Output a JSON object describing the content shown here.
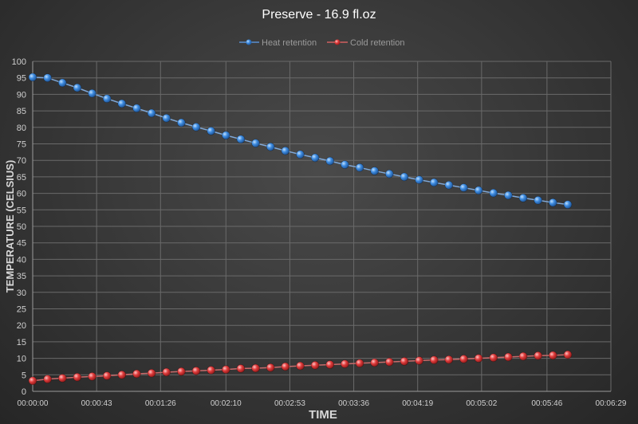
{
  "chart_data": {
    "type": "line",
    "title": "Preserve - 16.9 fl.oz",
    "xlabel": "TIME",
    "ylabel": "TEMPERATURE (CELSIUS)",
    "ylim": [
      0,
      100
    ],
    "yticks": [
      0,
      5,
      10,
      15,
      20,
      25,
      30,
      35,
      40,
      45,
      50,
      55,
      60,
      65,
      70,
      75,
      80,
      85,
      90,
      95,
      100
    ],
    "xlim": [
      "00:00:00",
      "00:06:29"
    ],
    "xtick_labels": [
      "00:00:00",
      "00:00:43",
      "00:01:26",
      "00:02:10",
      "00:02:53",
      "00:03:36",
      "00:04:19",
      "00:05:02",
      "00:05:46",
      "00:06:29"
    ],
    "grid": true,
    "legend_position": "top",
    "x": [
      "00:00:00",
      "00:00:10",
      "00:00:20",
      "00:00:30",
      "00:00:40",
      "00:00:50",
      "00:01:00",
      "00:01:10",
      "00:01:20",
      "00:01:30",
      "00:01:40",
      "00:01:50",
      "00:02:00",
      "00:02:10",
      "00:02:20",
      "00:02:30",
      "00:02:40",
      "00:02:50",
      "00:03:00",
      "00:03:10",
      "00:03:20",
      "00:03:30",
      "00:03:40",
      "00:03:50",
      "00:04:00",
      "00:04:10",
      "00:04:20",
      "00:04:30",
      "00:04:40",
      "00:04:50",
      "00:05:00",
      "00:05:10",
      "00:05:20",
      "00:05:30",
      "00:05:40",
      "00:05:50",
      "00:06:00"
    ],
    "series": [
      {
        "name": "Heat retention",
        "color": "#3d8be0",
        "values": [
          95.2,
          95.0,
          93.5,
          92.0,
          90.3,
          88.7,
          87.2,
          85.8,
          84.3,
          82.8,
          81.4,
          80.1,
          78.9,
          77.6,
          76.4,
          75.2,
          74.1,
          72.9,
          71.8,
          70.8,
          69.8,
          68.7,
          67.8,
          66.8,
          65.9,
          65.0,
          64.1,
          63.3,
          62.5,
          61.7,
          60.9,
          60.1,
          59.4,
          58.6,
          57.9,
          57.2,
          56.6
        ]
      },
      {
        "name": "Cold retention",
        "color": "#e03c3c",
        "values": [
          3.2,
          3.7,
          4.0,
          4.3,
          4.5,
          4.7,
          5.0,
          5.3,
          5.5,
          5.8,
          6.0,
          6.2,
          6.4,
          6.6,
          6.9,
          7.0,
          7.2,
          7.5,
          7.7,
          7.9,
          8.1,
          8.3,
          8.5,
          8.7,
          8.9,
          9.1,
          9.3,
          9.5,
          9.6,
          9.8,
          10.0,
          10.2,
          10.4,
          10.6,
          10.8,
          10.9,
          11.1
        ]
      }
    ]
  }
}
